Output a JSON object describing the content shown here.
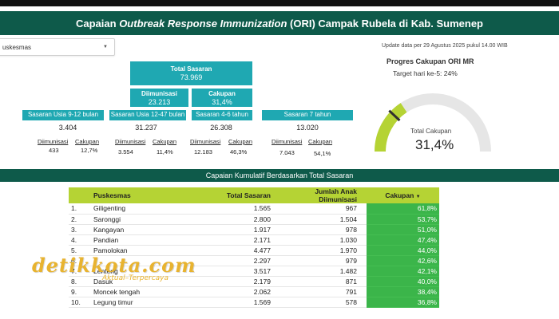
{
  "header": {
    "title_pre": "Capaian ",
    "title_em": "Outbreak Response Immunization",
    "title_post": " (ORI) Campak Rubela di Kab. Sumenep"
  },
  "filter": {
    "value": "uskesmas",
    "caret": "▼"
  },
  "totals": {
    "total_sasaran": {
      "label": "Total Sasaran",
      "value": "73.969"
    },
    "diimunisasi": {
      "label": "Diimunisasi",
      "value": "23.213"
    },
    "cakupan": {
      "label": "Cakupan",
      "value": "31,4%"
    }
  },
  "groups": [
    {
      "label": "Sasaran Usia 9-12 bulan",
      "sasaran": "3.404",
      "diimunisasi_label": "Diimunisasi",
      "diimunisasi": "433",
      "cakupan_label": "Cakupan",
      "cakupan": "12,7%"
    },
    {
      "label": "Sasaran Usia 12-47 bulan",
      "sasaran": "31.237",
      "diimunisasi_label": "Diimunisasi",
      "diimunisasi": "3.554",
      "cakupan_label": "Cakupan",
      "cakupan": "11,4%"
    },
    {
      "label": "Sasaran 4-6 tahun",
      "sasaran": "26.308",
      "diimunisasi_label": "Diimunisasi",
      "diimunisasi": "12.183",
      "cakupan_label": "Cakupan",
      "cakupan": "46,3%"
    },
    {
      "label": "Sasaran 7 tahun",
      "sasaran": "13.020",
      "diimunisasi_label": "Diimunisasi",
      "diimunisasi": "7.043",
      "cakupan_label": "Cakupan",
      "cakupan": "54,1%"
    }
  ],
  "update_text": "Update data per 29 Agustus 2025 pukul 14.00 WIB",
  "progress": {
    "title": "Progres Cakupan ORI MR",
    "subtitle": "Target hari ke-5: 24%",
    "gauge_label": "Total Cakupan",
    "gauge_value": "31,4%",
    "gauge_fraction": 0.314,
    "target_fraction": 0.24,
    "color_fill": "#b5d334",
    "color_track": "#e6e6e6",
    "color_target": "#2f2f2f"
  },
  "section_title": "Capaian Kumulatif Berdasarkan Total Sasaran",
  "table": {
    "columns": [
      "Puskesmas",
      "Total Sasaran",
      "Jumlah Anak Diimunisasi",
      "Cakupan"
    ],
    "sort_icon": "▼",
    "rows": [
      {
        "no": "1.",
        "name": "Giligenting",
        "sasaran": "1.565",
        "jumlah": "967",
        "cakupan": "61,8%"
      },
      {
        "no": "2.",
        "name": "Saronggi",
        "sasaran": "2.800",
        "jumlah": "1.504",
        "cakupan": "53,7%"
      },
      {
        "no": "3.",
        "name": "Kangayan",
        "sasaran": "1.917",
        "jumlah": "978",
        "cakupan": "51,0%"
      },
      {
        "no": "4.",
        "name": "Pandian",
        "sasaran": "2.171",
        "jumlah": "1.030",
        "cakupan": "47,4%"
      },
      {
        "no": "5.",
        "name": "Pamolokan",
        "sasaran": "4.477",
        "jumlah": "1.970",
        "cakupan": "44,0%"
      },
      {
        "no": "6.",
        "name": "",
        "sasaran": "2.297",
        "jumlah": "979",
        "cakupan": "42,6%"
      },
      {
        "no": "7.",
        "name": "Lenteng",
        "sasaran": "3.517",
        "jumlah": "1.482",
        "cakupan": "42,1%"
      },
      {
        "no": "8.",
        "name": "Dasuk",
        "sasaran": "2.179",
        "jumlah": "871",
        "cakupan": "40,0%"
      },
      {
        "no": "9.",
        "name": "Moncek tengah",
        "sasaran": "2.062",
        "jumlah": "791",
        "cakupan": "38,4%"
      },
      {
        "no": "10.",
        "name": "Legung timur",
        "sasaran": "1.569",
        "jumlah": "578",
        "cakupan": "36,8%"
      }
    ]
  },
  "watermark": {
    "logo": "detikkota.com",
    "tagline": "Aktual–Terpercaya"
  }
}
